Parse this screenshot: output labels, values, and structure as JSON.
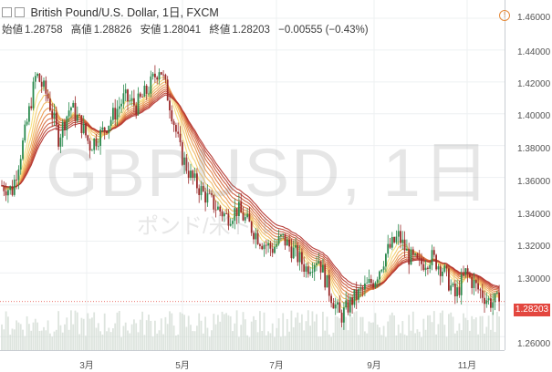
{
  "header": {
    "title": "British Pound/U.S. Dollar, 1日, FXCM",
    "open_label": "始値",
    "open": "1.28758",
    "high_label": "高値",
    "high": "1.28826",
    "low_label": "安値",
    "low": "1.28041",
    "close_label": "終値",
    "close": "1.28203",
    "change": "−0.00555 (−0.43%)"
  },
  "watermark": {
    "symbol": "GBPUSD, 1日",
    "name": "ポンド/米ドル"
  },
  "last_price_tag": "1.28203",
  "alert_icon": "!",
  "colors": {
    "up": "#2b8a4e",
    "down": "#9b2a2a",
    "ribbon_light": "#f3d46a",
    "ribbon_dark": "#b8332f",
    "price_tag": "#e3473f",
    "volume": "#cfd8d0"
  },
  "chart_data": {
    "type": "candlestick",
    "y_axis": {
      "ticks": [
        "1.46000",
        "1.44000",
        "1.42000",
        "1.40000",
        "1.38000",
        "1.36000",
        "1.34000",
        "1.32000",
        "1.30000",
        "1.28000",
        "1.26000"
      ],
      "range": [
        1.255,
        1.465
      ]
    },
    "x_axis": {
      "ticks": [
        "3月",
        "5月",
        "7月",
        "9月",
        "11月"
      ]
    },
    "price_path": [
      [
        "Jan-01",
        1.355
      ],
      [
        "Jan-08",
        1.352
      ],
      [
        "Jan-16",
        1.385
      ],
      [
        "Jan-24",
        1.425
      ],
      [
        "Feb-01",
        1.41
      ],
      [
        "Feb-08",
        1.385
      ],
      [
        "Feb-16",
        1.405
      ],
      [
        "Feb-24",
        1.392
      ],
      [
        "Mar-01",
        1.38
      ],
      [
        "Mar-09",
        1.388
      ],
      [
        "Mar-16",
        1.398
      ],
      [
        "Mar-24",
        1.41
      ],
      [
        "Apr-01",
        1.405
      ],
      [
        "Apr-09",
        1.415
      ],
      [
        "Apr-17",
        1.43
      ],
      [
        "Apr-24",
        1.405
      ],
      [
        "May-01",
        1.375
      ],
      [
        "May-08",
        1.36
      ],
      [
        "May-16",
        1.35
      ],
      [
        "May-24",
        1.342
      ],
      [
        "Jun-01",
        1.335
      ],
      [
        "Jun-08",
        1.34
      ],
      [
        "Jun-16",
        1.33
      ],
      [
        "Jun-24",
        1.32
      ],
      [
        "Jul-01",
        1.315
      ],
      [
        "Jul-08",
        1.322
      ],
      [
        "Jul-16",
        1.313
      ],
      [
        "Jul-24",
        1.303
      ],
      [
        "Aug-01",
        1.31
      ],
      [
        "Aug-08",
        1.29
      ],
      [
        "Aug-16",
        1.272
      ],
      [
        "Aug-24",
        1.283
      ],
      [
        "Sep-01",
        1.29
      ],
      [
        "Sep-08",
        1.296
      ],
      [
        "Sep-16",
        1.313
      ],
      [
        "Sep-24",
        1.323
      ],
      [
        "Oct-01",
        1.31
      ],
      [
        "Oct-08",
        1.305
      ],
      [
        "Oct-16",
        1.31
      ],
      [
        "Oct-24",
        1.302
      ],
      [
        "Nov-01",
        1.285
      ],
      [
        "Nov-08",
        1.3
      ],
      [
        "Nov-16",
        1.29
      ],
      [
        "Nov-24",
        1.282
      ],
      [
        "Dec-01",
        1.282
      ]
    ],
    "indicator": "moving-average ribbon",
    "last_price": 1.28203,
    "grid": true
  }
}
